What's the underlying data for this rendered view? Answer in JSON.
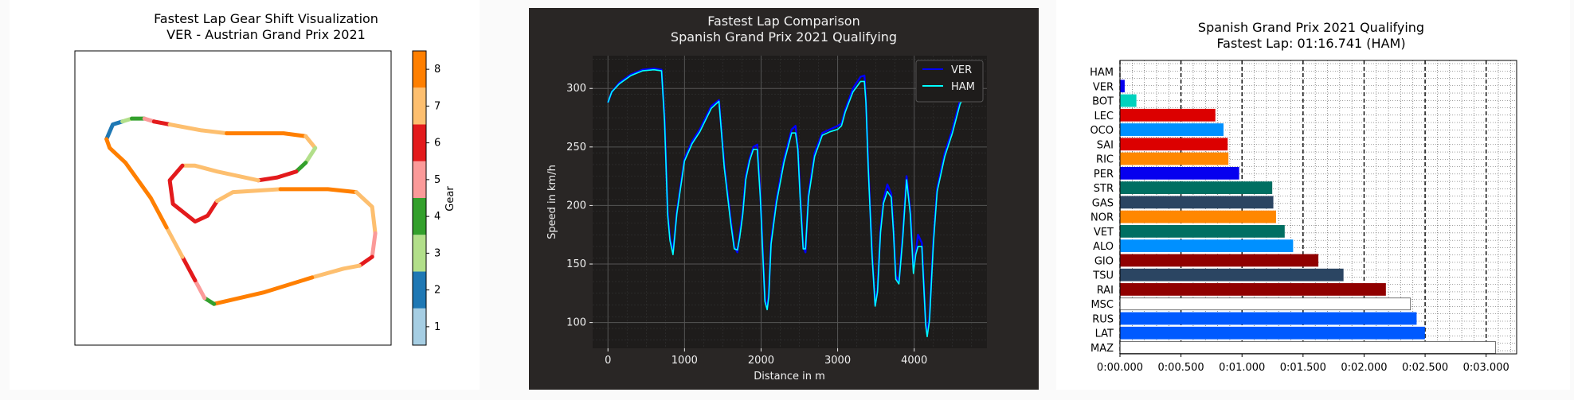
{
  "chart_data": [
    {
      "type": "line",
      "title": "Fastest Lap Gear Shift Visualization",
      "subtitle": "VER - Austrian Grand Prix 2021",
      "colorbar_label": "Gear",
      "gears": [
        1,
        2,
        3,
        4,
        5,
        6,
        7,
        8
      ],
      "gear_colors": [
        "#a6cee3",
        "#1f78b4",
        "#b2df8a",
        "#33a02c",
        "#fb9a99",
        "#e31a1c",
        "#fdbf6f",
        "#ff7f00"
      ],
      "track_segments": [
        {
          "gear": 2,
          "points": [
            [
              0.1,
              0.3
            ],
            [
              0.12,
              0.25
            ],
            [
              0.15,
              0.24
            ]
          ]
        },
        {
          "gear": 3,
          "points": [
            [
              0.15,
              0.24
            ],
            [
              0.18,
              0.23
            ]
          ]
        },
        {
          "gear": 4,
          "points": [
            [
              0.18,
              0.23
            ],
            [
              0.22,
              0.23
            ]
          ]
        },
        {
          "gear": 5,
          "points": [
            [
              0.22,
              0.23
            ],
            [
              0.25,
              0.24
            ]
          ]
        },
        {
          "gear": 6,
          "points": [
            [
              0.25,
              0.24
            ],
            [
              0.3,
              0.25
            ]
          ]
        },
        {
          "gear": 7,
          "points": [
            [
              0.3,
              0.25
            ],
            [
              0.4,
              0.27
            ],
            [
              0.48,
              0.28
            ]
          ]
        },
        {
          "gear": 8,
          "points": [
            [
              0.48,
              0.28
            ],
            [
              0.6,
              0.28
            ],
            [
              0.66,
              0.28
            ],
            [
              0.73,
              0.29
            ]
          ]
        },
        {
          "gear": 7,
          "points": [
            [
              0.73,
              0.29
            ],
            [
              0.76,
              0.33
            ]
          ]
        },
        {
          "gear": 3,
          "points": [
            [
              0.76,
              0.33
            ],
            [
              0.73,
              0.38
            ]
          ]
        },
        {
          "gear": 4,
          "points": [
            [
              0.73,
              0.38
            ],
            [
              0.7,
              0.41
            ]
          ]
        },
        {
          "gear": 6,
          "points": [
            [
              0.7,
              0.41
            ],
            [
              0.64,
              0.43
            ],
            [
              0.58,
              0.44
            ]
          ]
        },
        {
          "gear": 7,
          "points": [
            [
              0.58,
              0.44
            ],
            [
              0.45,
              0.41
            ],
            [
              0.38,
              0.39
            ],
            [
              0.34,
              0.39
            ]
          ]
        },
        {
          "gear": 6,
          "points": [
            [
              0.34,
              0.39
            ],
            [
              0.3,
              0.44
            ],
            [
              0.31,
              0.52
            ],
            [
              0.38,
              0.58
            ],
            [
              0.42,
              0.56
            ],
            [
              0.45,
              0.51
            ]
          ]
        },
        {
          "gear": 7,
          "points": [
            [
              0.45,
              0.51
            ],
            [
              0.5,
              0.48
            ],
            [
              0.65,
              0.47
            ]
          ]
        },
        {
          "gear": 8,
          "points": [
            [
              0.65,
              0.47
            ],
            [
              0.8,
              0.47
            ],
            [
              0.89,
              0.48
            ]
          ]
        },
        {
          "gear": 7,
          "points": [
            [
              0.89,
              0.48
            ],
            [
              0.94,
              0.53
            ],
            [
              0.95,
              0.62
            ]
          ]
        },
        {
          "gear": 5,
          "points": [
            [
              0.95,
              0.62
            ],
            [
              0.94,
              0.7
            ]
          ]
        },
        {
          "gear": 6,
          "points": [
            [
              0.94,
              0.7
            ],
            [
              0.9,
              0.73
            ]
          ]
        },
        {
          "gear": 7,
          "points": [
            [
              0.9,
              0.73
            ],
            [
              0.85,
              0.74
            ],
            [
              0.75,
              0.77
            ]
          ]
        },
        {
          "gear": 8,
          "points": [
            [
              0.75,
              0.77
            ],
            [
              0.6,
              0.82
            ],
            [
              0.44,
              0.86
            ]
          ]
        },
        {
          "gear": 4,
          "points": [
            [
              0.44,
              0.86
            ],
            [
              0.41,
              0.84
            ]
          ]
        },
        {
          "gear": 5,
          "points": [
            [
              0.41,
              0.84
            ],
            [
              0.38,
              0.78
            ]
          ]
        },
        {
          "gear": 6,
          "points": [
            [
              0.38,
              0.78
            ],
            [
              0.34,
              0.7
            ]
          ]
        },
        {
          "gear": 7,
          "points": [
            [
              0.34,
              0.7
            ],
            [
              0.29,
              0.6
            ]
          ]
        },
        {
          "gear": 8,
          "points": [
            [
              0.29,
              0.6
            ],
            [
              0.24,
              0.5
            ],
            [
              0.16,
              0.38
            ],
            [
              0.11,
              0.33
            ],
            [
              0.1,
              0.3
            ]
          ]
        }
      ]
    },
    {
      "type": "line",
      "title": "Fastest Lap Comparison",
      "subtitle": "Spanish Grand Prix 2021 Qualifying",
      "xlabel": "Distance in m",
      "ylabel": "Speed in km/h",
      "xlim": [
        -200,
        4950
      ],
      "ylim": [
        78,
        328
      ],
      "xticks": [
        0,
        1000,
        2000,
        3000,
        4000
      ],
      "yticks": [
        100,
        150,
        200,
        250,
        300
      ],
      "legend_position": "top-right",
      "series": [
        {
          "name": "VER",
          "color": "#0000ff",
          "x": [
            0,
            50,
            150,
            300,
            450,
            600,
            700,
            740,
            780,
            810,
            850,
            900,
            1000,
            1100,
            1200,
            1350,
            1450,
            1520,
            1600,
            1650,
            1690,
            1720,
            1760,
            1800,
            1850,
            1900,
            1950,
            1990,
            2020,
            2050,
            2080,
            2100,
            2130,
            2200,
            2300,
            2400,
            2450,
            2480,
            2510,
            2550,
            2580,
            2620,
            2700,
            2800,
            2900,
            3000,
            3050,
            3100,
            3200,
            3300,
            3350,
            3370,
            3400,
            3450,
            3490,
            3520,
            3560,
            3600,
            3650,
            3700,
            3730,
            3760,
            3800,
            3850,
            3900,
            3950,
            3990,
            4020,
            4050,
            4100,
            4150,
            4170,
            4200,
            4250,
            4300,
            4400,
            4500,
            4600,
            4700
          ],
          "y": [
            288,
            297,
            305,
            312,
            316,
            317,
            316,
            275,
            195,
            172,
            160,
            195,
            240,
            255,
            265,
            285,
            290,
            235,
            190,
            165,
            160,
            175,
            195,
            225,
            240,
            250,
            252,
            210,
            165,
            120,
            112,
            125,
            170,
            205,
            240,
            265,
            268,
            250,
            210,
            165,
            160,
            210,
            245,
            262,
            265,
            268,
            270,
            282,
            300,
            310,
            311,
            290,
            235,
            160,
            115,
            128,
            180,
            205,
            218,
            210,
            180,
            140,
            135,
            175,
            225,
            195,
            145,
            160,
            175,
            168,
            100,
            90,
            105,
            170,
            215,
            245,
            265,
            290,
            300
          ]
        },
        {
          "name": "HAM",
          "color": "#00ffff",
          "x": [
            0,
            50,
            150,
            300,
            450,
            600,
            700,
            740,
            780,
            810,
            850,
            900,
            1000,
            1100,
            1200,
            1350,
            1450,
            1520,
            1600,
            1650,
            1690,
            1720,
            1760,
            1800,
            1850,
            1900,
            1950,
            1990,
            2020,
            2050,
            2080,
            2100,
            2130,
            2200,
            2300,
            2400,
            2450,
            2480,
            2510,
            2550,
            2580,
            2620,
            2700,
            2800,
            2900,
            3000,
            3050,
            3100,
            3200,
            3300,
            3350,
            3370,
            3400,
            3450,
            3490,
            3520,
            3560,
            3600,
            3650,
            3700,
            3730,
            3760,
            3800,
            3850,
            3900,
            3950,
            3990,
            4020,
            4050,
            4100,
            4150,
            4170,
            4200,
            4250,
            4300,
            4400,
            4500,
            4600,
            4700
          ],
          "y": [
            288,
            297,
            304,
            311,
            315,
            316,
            315,
            272,
            192,
            170,
            158,
            193,
            238,
            253,
            263,
            283,
            289,
            232,
            187,
            163,
            162,
            172,
            192,
            222,
            238,
            248,
            248,
            207,
            162,
            118,
            111,
            122,
            167,
            202,
            237,
            262,
            262,
            248,
            207,
            163,
            163,
            207,
            242,
            260,
            263,
            265,
            268,
            280,
            297,
            306,
            306,
            288,
            232,
            157,
            114,
            126,
            177,
            202,
            212,
            207,
            177,
            137,
            133,
            172,
            222,
            192,
            142,
            158,
            165,
            165,
            98,
            88,
            102,
            167,
            212,
            242,
            262,
            287,
            297
          ]
        }
      ]
    },
    {
      "type": "bar",
      "orientation": "horizontal",
      "title": "Spanish Grand Prix 2021 Qualifying",
      "subtitle": "Fastest Lap: 01:16.741 (HAM)",
      "xlim": [
        0,
        3.25
      ],
      "xtick_values": [
        0,
        0.5,
        1.0,
        1.5,
        2.0,
        2.5,
        3.0
      ],
      "xtick_labels": [
        "0:00.000",
        "0:00.500",
        "0:01.000",
        "0:01.500",
        "0:02.000",
        "0:02.500",
        "0:03.000"
      ],
      "grid": true,
      "categories": [
        "HAM",
        "VER",
        "BOT",
        "LEC",
        "OCO",
        "SAI",
        "RIC",
        "PER",
        "STR",
        "GAS",
        "NOR",
        "VET",
        "ALO",
        "GIO",
        "TSU",
        "RAI",
        "MSC",
        "RUS",
        "LAT",
        "MAZ"
      ],
      "values": [
        0.0,
        0.036,
        0.132,
        0.779,
        0.846,
        0.88,
        0.886,
        0.974,
        1.245,
        1.254,
        1.276,
        1.347,
        1.416,
        1.623,
        1.829,
        2.176,
        2.38,
        2.428,
        2.496,
        3.077
      ],
      "colors": [
        "#00d2be",
        "#0600ef",
        "#00d2be",
        "#dc0000",
        "#0090ff",
        "#dc0000",
        "#ff8700",
        "#0600ef",
        "#006f62",
        "#2b4562",
        "#ff8700",
        "#006f62",
        "#0090ff",
        "#900000",
        "#2b4562",
        "#900000",
        "#ffffff",
        "#005aff",
        "#005aff",
        "#ffffff"
      ]
    }
  ]
}
